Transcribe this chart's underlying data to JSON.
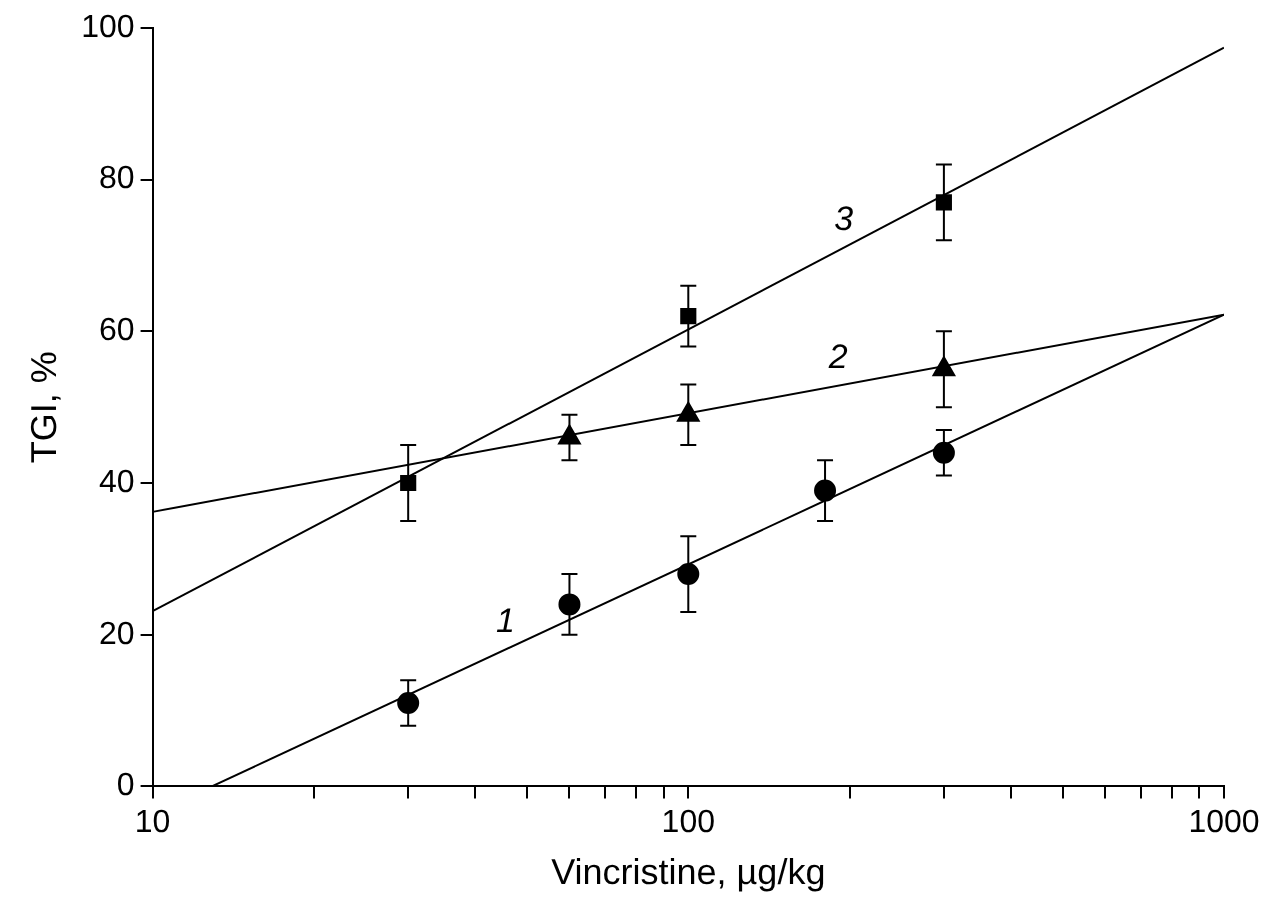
{
  "chart_data": {
    "type": "scatter",
    "xlabel": "Vincristine, µg/kg",
    "ylabel": "TGI, %",
    "log": "x",
    "xlim": [
      10,
      1000
    ],
    "ylim": [
      0,
      100
    ],
    "xticks": [
      10,
      {
        "value": 20,
        "label": null
      },
      {
        "value": 30,
        "label": null
      },
      {
        "value": 40,
        "label": null
      },
      {
        "value": 50,
        "label": null
      },
      {
        "value": 60,
        "label": null
      },
      {
        "value": 70,
        "label": null
      },
      {
        "value": 80,
        "label": null
      },
      {
        "value": 90,
        "label": null
      },
      100,
      {
        "value": 200,
        "label": null
      },
      {
        "value": 300,
        "label": null
      },
      {
        "value": 400,
        "label": null
      },
      {
        "value": 500,
        "label": null
      },
      {
        "value": 600,
        "label": null
      },
      {
        "value": 700,
        "label": null
      },
      {
        "value": 800,
        "label": null
      },
      {
        "value": 900,
        "label": null
      },
      1000
    ],
    "yticks": [
      0,
      20,
      40,
      60,
      80,
      100
    ],
    "grid": false,
    "legend": false,
    "series": [
      {
        "marker": "circle",
        "color": "#000000",
        "x": [
          30,
          60,
          100,
          180,
          300
        ],
        "values": [
          11,
          24,
          28,
          39,
          44
        ],
        "errors": [
          3,
          4,
          5,
          4,
          3
        ]
      },
      {
        "marker": "triangle",
        "color": "#000000",
        "x": [
          60,
          100,
          300
        ],
        "values": [
          46,
          49,
          55
        ],
        "errors": [
          3,
          4,
          5
        ]
      },
      {
        "marker": "square",
        "color": "#000000",
        "x": [
          30,
          100,
          300
        ],
        "values": [
          40,
          62,
          77
        ],
        "errors": [
          5,
          4,
          5
        ]
      },
      {
        "type": "line",
        "name": "1",
        "marker": "none",
        "color": "#000000",
        "x": [
          12.9,
          1000
        ],
        "values": [
          0,
          62.2
        ]
      },
      {
        "type": "line",
        "name": "2",
        "marker": "none",
        "color": "#000000",
        "x": [
          10,
          1000
        ],
        "values": [
          36.2,
          62.2
        ]
      },
      {
        "type": "line",
        "name": "3",
        "marker": "none",
        "color": "#000000",
        "x": [
          10,
          1000
        ],
        "values": [
          23.1,
          97.4
        ]
      }
    ]
  }
}
